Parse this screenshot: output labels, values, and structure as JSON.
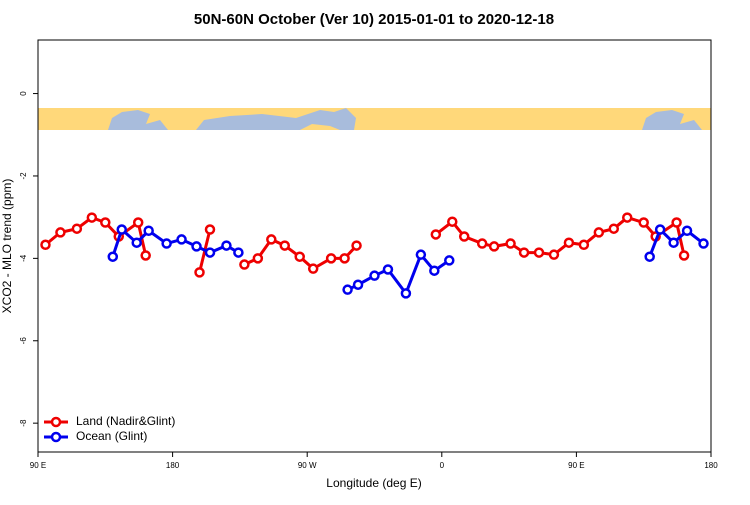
{
  "chart_data": {
    "type": "line",
    "title": "50N-60N October (Ver 10)   2015-01-01 to 2020-12-18",
    "x_label": "Longitude (deg E)",
    "y_label": "XCO2 - MLO trend (ppm)",
    "xlim": [
      90,
      540
    ],
    "xticks": [
      {
        "value": 90,
        "label": "90 E"
      },
      {
        "value": 180,
        "label": "180"
      },
      {
        "value": 270,
        "label": "90 W"
      },
      {
        "value": 360,
        "label": "0"
      },
      {
        "value": 450,
        "label": "90 E"
      },
      {
        "value": 540,
        "label": "180"
      }
    ],
    "ylim": [
      -8.7,
      1.3
    ],
    "yticks": [
      0,
      -2,
      -4,
      -6,
      -8
    ],
    "legend": "bottom-left",
    "series": [
      {
        "name": "Land (Nadir&Glint)",
        "color": "#ee0000",
        "x": [
          95,
          105,
          116,
          126,
          135,
          144,
          157,
          162,
          null,
          198,
          205,
          null,
          228,
          237,
          246,
          255,
          265,
          274,
          286,
          295,
          303,
          null,
          356,
          367,
          375,
          387,
          395,
          406,
          415,
          425,
          435,
          445,
          455,
          465,
          475,
          484,
          495,
          503,
          517,
          522
        ],
        "values": [
          -3.67,
          -3.37,
          -3.28,
          -3.01,
          -3.13,
          -3.47,
          -3.13,
          -3.93,
          null,
          -4.34,
          -3.3,
          null,
          -4.15,
          -4.0,
          -3.54,
          -3.69,
          -3.96,
          -4.25,
          -4.0,
          -4.0,
          -3.69,
          null,
          -3.42,
          -3.11,
          -3.47,
          -3.64,
          -3.71,
          -3.64,
          -3.86,
          -3.86,
          -3.91,
          -3.62,
          -3.67,
          -3.37,
          -3.28,
          -3.01,
          -3.13,
          -3.47,
          -3.13,
          -3.93
        ]
      },
      {
        "name": "Ocean (Glint)",
        "color": "#0000ee",
        "x": [
          140,
          146,
          156,
          164,
          176,
          186,
          196,
          205,
          216,
          224,
          null,
          297,
          304,
          315,
          324,
          336,
          346,
          355,
          365,
          null,
          499,
          506,
          515,
          524,
          535
        ],
        "values": [
          -3.96,
          -3.3,
          -3.62,
          -3.33,
          -3.64,
          -3.54,
          -3.71,
          -3.86,
          -3.69,
          -3.86,
          null,
          -4.76,
          -4.64,
          -4.42,
          -4.27,
          -4.85,
          -3.91,
          -4.3,
          -4.05,
          null,
          -3.96,
          -3.3,
          -3.62,
          -3.33,
          -3.64
        ]
      }
    ]
  }
}
